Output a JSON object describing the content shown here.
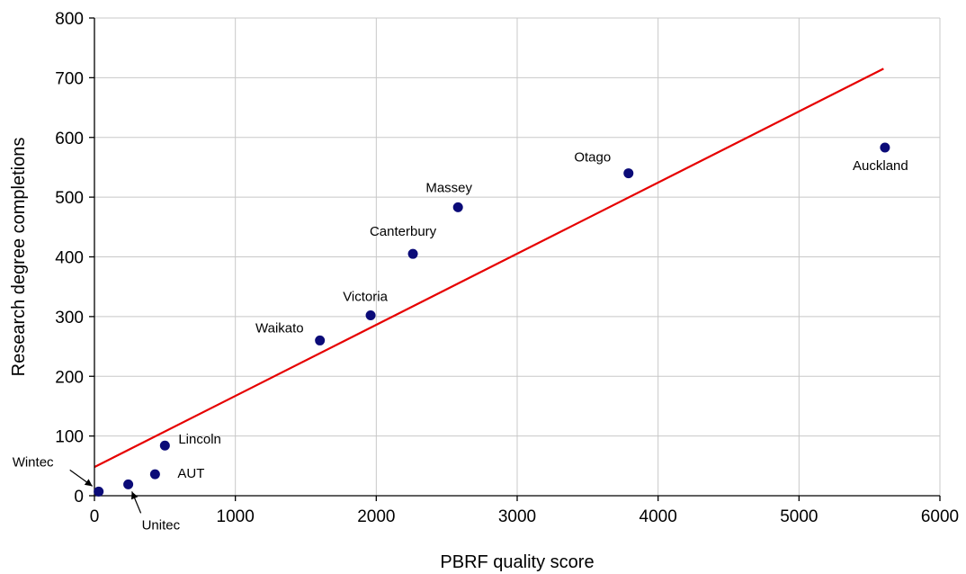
{
  "chart_data": {
    "type": "scatter",
    "title": "",
    "xlabel": "PBRF quality score",
    "ylabel": "Research degree completions",
    "xlim": [
      0,
      6000
    ],
    "ylim": [
      0,
      800
    ],
    "x_ticks": [
      0,
      1000,
      2000,
      3000,
      4000,
      5000,
      6000
    ],
    "y_ticks": [
      0,
      100,
      200,
      300,
      400,
      500,
      600,
      700,
      800
    ],
    "grid": true,
    "legend": "none",
    "series": [
      {
        "points": [
          {
            "label": "Wintec",
            "x": 30,
            "y": 7
          },
          {
            "label": "Unitec",
            "x": 240,
            "y": 19
          },
          {
            "label": "AUT",
            "x": 430,
            "y": 36
          },
          {
            "label": "Lincoln",
            "x": 500,
            "y": 84
          },
          {
            "label": "Waikato",
            "x": 1600,
            "y": 260
          },
          {
            "label": "Victoria",
            "x": 1960,
            "y": 302
          },
          {
            "label": "Canterbury",
            "x": 2260,
            "y": 405
          },
          {
            "label": "Massey",
            "x": 2580,
            "y": 483
          },
          {
            "label": "Otago",
            "x": 3790,
            "y": 540
          },
          {
            "label": "Auckland",
            "x": 5610,
            "y": 583
          }
        ],
        "color": "#0b0b78"
      }
    ],
    "trendline": {
      "from": {
        "x": 0,
        "y": 48
      },
      "to": {
        "x": 5600,
        "y": 715
      },
      "color": "#e60000"
    }
  }
}
